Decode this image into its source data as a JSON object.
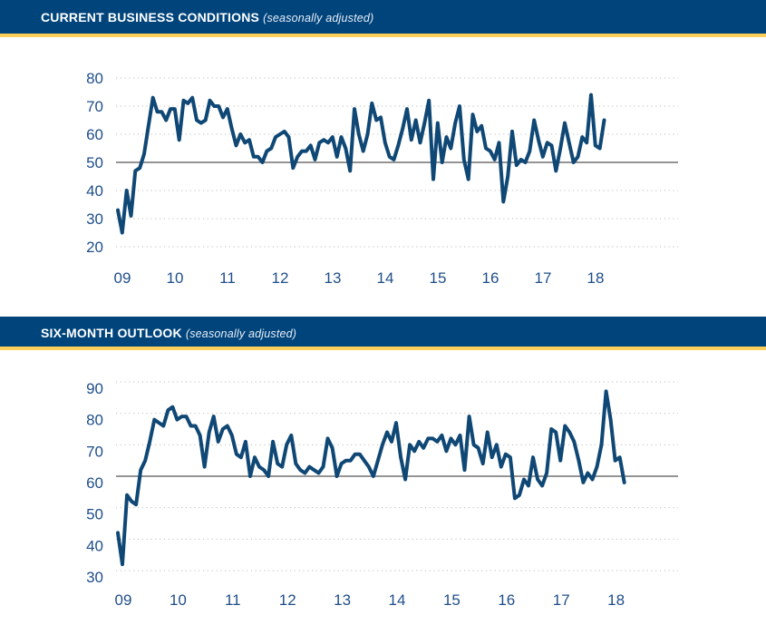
{
  "colors": {
    "header_bg": "#00447c",
    "header_stripe": "#fccf5b",
    "line": "#0f4775",
    "tick_text": "#1f4e8a",
    "baseline": "#555555",
    "grid": "#bdbdbd"
  },
  "chart_data": [
    {
      "type": "line",
      "title": "CURRENT BUSINESS CONDITIONS",
      "subtitle": "(seasonally adjusted)",
      "xlabel": "",
      "ylabel": "",
      "x_tick_labels": [
        "09",
        "10",
        "11",
        "12",
        "13",
        "14",
        "15",
        "16",
        "17",
        "18"
      ],
      "y_tick_labels": [
        "80",
        "70",
        "60",
        "50",
        "40",
        "30",
        "20"
      ],
      "ylim": [
        20,
        80
      ],
      "reference_line": 50,
      "grid": "dotted horizontal",
      "x_start": "2009-01",
      "frequency": "monthly",
      "series": [
        {
          "name": "Current Business Conditions",
          "values": [
            33,
            25,
            40,
            31,
            47,
            48,
            53,
            63,
            73,
            68,
            68,
            65,
            69,
            69,
            58,
            72,
            71,
            73,
            65,
            64,
            65,
            72,
            70,
            70,
            66,
            69,
            62,
            56,
            60,
            57,
            58,
            52,
            52,
            50,
            54,
            55,
            59,
            60,
            61,
            59,
            48,
            52,
            54,
            54,
            56,
            51,
            57,
            58,
            57,
            59,
            52,
            59,
            55,
            47,
            69,
            60,
            54,
            60,
            71,
            65,
            66,
            57,
            52,
            51,
            56,
            62,
            69,
            58,
            65,
            57,
            64,
            72,
            44,
            64,
            50,
            59,
            55,
            64,
            70,
            51,
            44,
            67,
            61,
            63,
            55,
            54,
            51,
            57,
            36,
            45,
            61,
            49,
            51,
            50,
            54,
            65,
            58,
            52,
            57,
            56,
            47,
            55,
            64,
            57,
            50,
            52,
            59,
            57,
            74,
            56,
            55,
            65
          ]
        }
      ]
    },
    {
      "type": "line",
      "title": "SIX-MONTH OUTLOOK",
      "subtitle": "(seasonally adjusted)",
      "xlabel": "",
      "ylabel": "",
      "x_tick_labels": [
        "09",
        "10",
        "11",
        "12",
        "13",
        "14",
        "15",
        "16",
        "17",
        "18"
      ],
      "y_tick_labels": [
        "90",
        "80",
        "70",
        "60",
        "50",
        "40",
        "30"
      ],
      "ylim": [
        30,
        90
      ],
      "reference_line": 60,
      "grid": "dotted horizontal",
      "x_start": "2009-01",
      "frequency": "monthly",
      "series": [
        {
          "name": "Six-Month Outlook",
          "values": [
            42,
            32,
            54,
            52,
            51,
            62,
            65,
            71,
            78,
            77,
            76,
            81,
            82,
            78,
            79,
            79,
            76,
            76,
            73,
            63,
            74,
            79,
            71,
            75,
            76,
            73,
            67,
            66,
            71,
            60,
            66,
            63,
            62,
            60,
            71,
            64,
            63,
            70,
            73,
            64,
            62,
            61,
            63,
            62,
            61,
            63,
            72,
            69,
            60,
            64,
            65,
            65,
            67,
            67,
            65,
            63,
            60,
            65,
            70,
            74,
            71,
            77,
            66,
            59,
            70,
            68,
            71,
            69,
            72,
            72,
            71,
            73,
            68,
            72,
            70,
            73,
            62,
            79,
            70,
            69,
            64,
            74,
            66,
            70,
            63,
            67,
            66,
            53,
            54,
            59,
            57,
            66,
            59,
            57,
            61,
            75,
            74,
            65,
            76,
            74,
            71,
            65,
            58,
            61,
            59,
            63,
            70,
            87,
            78,
            65,
            66,
            58
          ]
        }
      ]
    }
  ]
}
